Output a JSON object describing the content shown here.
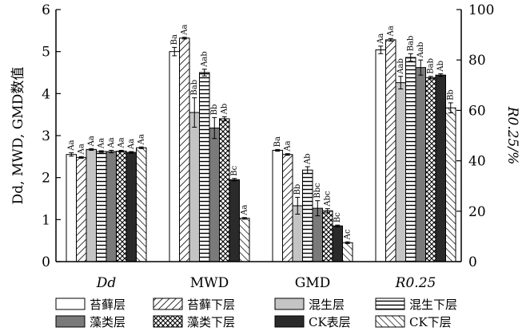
{
  "chart_data": {
    "type": "bar",
    "y_left_label": "Dd, MWD, GMD数值",
    "y_right_label": "R0.25/%",
    "y_left_lim": [
      0,
      6
    ],
    "y_left_ticks": [
      0,
      1,
      2,
      3,
      4,
      5,
      6
    ],
    "y_right_lim": [
      0,
      100
    ],
    "y_right_ticks": [
      0,
      20,
      40,
      60,
      80,
      100
    ],
    "categories": [
      {
        "label": "Dd",
        "axis": "left"
      },
      {
        "label": "MWD",
        "axis": "left"
      },
      {
        "label": "GMD",
        "axis": "left"
      },
      {
        "label": "R0.25",
        "axis": "right"
      }
    ],
    "series": [
      {
        "name": "苔藓层",
        "pattern": "white",
        "values": [
          2.55,
          5.0,
          2.65,
          84
        ],
        "errors": [
          0.04,
          0.1,
          0.02,
          1.5
        ],
        "labels": [
          "Aa",
          "Ba",
          "Ba",
          "Aa"
        ]
      },
      {
        "name": "苔藓下层",
        "pattern": "diag",
        "values": [
          2.48,
          5.32,
          2.55,
          88
        ],
        "errors": [
          0.02,
          0.02,
          0.02,
          0.5
        ],
        "labels": [
          "Aa",
          "Aa",
          "Aa",
          "Aa"
        ]
      },
      {
        "name": "混生层",
        "pattern": "lightgray",
        "values": [
          2.67,
          3.55,
          1.33,
          71
        ],
        "errors": [
          0.02,
          0.35,
          0.2,
          2.5
        ],
        "labels": [
          "Aa",
          "Bab",
          "Bb",
          "Aab"
        ]
      },
      {
        "name": "混生下层",
        "pattern": "hlines",
        "values": [
          2.62,
          4.5,
          2.18,
          81
        ],
        "errors": [
          0.02,
          0.08,
          0.08,
          1.5
        ],
        "labels": [
          "Aa",
          "Aab",
          "Ab",
          "Bab"
        ]
      },
      {
        "name": "藻类层",
        "pattern": "gray",
        "values": [
          2.62,
          3.18,
          1.27,
          77
        ],
        "errors": [
          0.03,
          0.25,
          0.18,
          3.0
        ],
        "labels": [
          "Aa",
          "Bb",
          "Bbc",
          "Aab"
        ]
      },
      {
        "name": "藻类下层",
        "pattern": "cross",
        "values": [
          2.63,
          3.4,
          1.21,
          73
        ],
        "errors": [
          0.02,
          0.05,
          0.05,
          0.5
        ],
        "labels": [
          "Aa",
          "Ab",
          "Abc",
          "Bab"
        ]
      },
      {
        "name": "CK表层",
        "pattern": "black",
        "values": [
          2.6,
          1.95,
          0.85,
          74
        ],
        "errors": [
          0.02,
          0.03,
          0.02,
          0.5
        ],
        "labels": [
          "Aa",
          "Bc",
          "Bc",
          "Ab"
        ]
      },
      {
        "name": "CK下层",
        "pattern": "bdiag",
        "values": [
          2.71,
          1.03,
          0.45,
          61
        ],
        "errors": [
          0.02,
          0.02,
          0.02,
          2.0
        ],
        "labels": [
          "Aa",
          "Aa",
          "Ac",
          "Bb"
        ]
      }
    ],
    "grid": false,
    "legend_position": "bottom"
  }
}
